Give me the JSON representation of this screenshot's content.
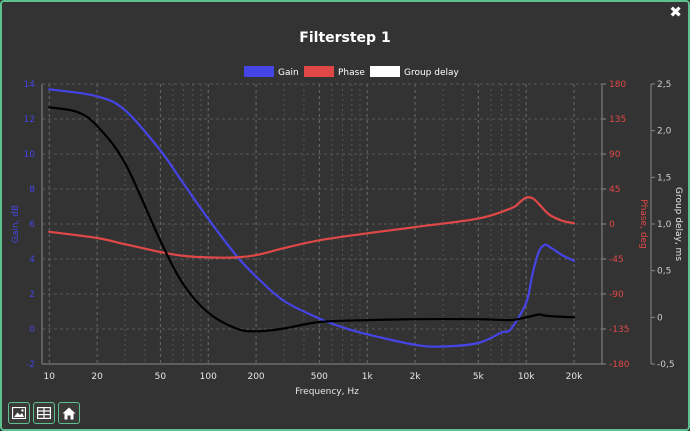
{
  "window": {
    "close_glyph": "✖"
  },
  "toolbar": {
    "buttons": [
      {
        "icon": "image-icon"
      },
      {
        "icon": "table-icon"
      },
      {
        "icon": "home-icon"
      }
    ]
  },
  "chart_data": {
    "type": "line",
    "title": "Filterstep 1",
    "xlabel": "Frequency, Hz",
    "x_scale": "log",
    "xlim": [
      9,
      30000
    ],
    "x_ticks": [
      10,
      20,
      50,
      100,
      200,
      500,
      1000,
      2000,
      5000,
      10000,
      20000
    ],
    "x_tick_labels": [
      "10",
      "20",
      "50",
      "100",
      "200",
      "500",
      "1k",
      "2k",
      "5k",
      "10k",
      "20k"
    ],
    "legend_position": "top-center",
    "grid": true,
    "y_axes": [
      {
        "id": "gain",
        "label": "Gain, dB",
        "side": "left",
        "range": [
          -2,
          14
        ],
        "ticks": [
          -2,
          0,
          2,
          4,
          6,
          8,
          10,
          12,
          14
        ],
        "color": "#4545e6"
      },
      {
        "id": "phase",
        "label": "Phase, deg",
        "side": "right",
        "range": [
          -180,
          180
        ],
        "ticks": [
          -180,
          -135,
          -90,
          -45,
          0,
          45,
          90,
          135,
          180
        ],
        "color": "#e04848"
      },
      {
        "id": "gd",
        "label": "Group delay, ms",
        "side": "right",
        "range": [
          -0.5,
          2.5
        ],
        "ticks": [
          -0.5,
          0,
          0.5,
          1,
          1.5,
          2,
          2.5
        ],
        "tick_labels": [
          "-0,5",
          "0",
          "0,5",
          "1,0",
          "1,5",
          "2,0",
          "2,5"
        ],
        "color": "#cccccc"
      }
    ],
    "series": [
      {
        "name": "Gain",
        "axis": "gain",
        "color": "#4545e6",
        "x": [
          10,
          20,
          30,
          50,
          70,
          100,
          150,
          200,
          300,
          500,
          700,
          1000,
          2000,
          3000,
          5000,
          7000,
          8000,
          10000,
          11000,
          12000,
          13000,
          14000,
          17000,
          20000
        ],
        "y": [
          13.7,
          13.3,
          12.5,
          10.2,
          8.3,
          6.3,
          4.2,
          3.0,
          1.6,
          0.6,
          0.1,
          -0.3,
          -0.9,
          -1.0,
          -0.8,
          -0.2,
          0.0,
          1.5,
          3.2,
          4.4,
          4.8,
          4.7,
          4.2,
          3.9
        ]
      },
      {
        "name": "Phase",
        "axis": "phase",
        "color": "#e04848",
        "x": [
          10,
          20,
          30,
          50,
          70,
          100,
          150,
          200,
          300,
          500,
          1000,
          2000,
          5000,
          8000,
          9000,
          10000,
          11000,
          12000,
          14000,
          17000,
          20000
        ],
        "y": [
          -10,
          -18,
          -26,
          -36,
          -41,
          -43,
          -43,
          -40,
          -31,
          -21,
          -12,
          -4,
          7,
          20,
          27,
          34,
          33,
          26,
          12,
          4,
          1
        ]
      },
      {
        "name": "Group delay",
        "axis": "gd",
        "color": "#000000",
        "x": [
          10,
          15,
          20,
          30,
          50,
          70,
          100,
          150,
          200,
          300,
          500,
          1000,
          2000,
          5000,
          8000,
          10000,
          12000,
          13000,
          15000,
          20000
        ],
        "y": [
          2.25,
          2.2,
          2.05,
          1.65,
          0.82,
          0.35,
          0.05,
          -0.12,
          -0.15,
          -0.12,
          -0.05,
          -0.03,
          -0.02,
          -0.02,
          -0.03,
          0.0,
          0.03,
          0.02,
          0.01,
          0.0
        ]
      }
    ]
  }
}
